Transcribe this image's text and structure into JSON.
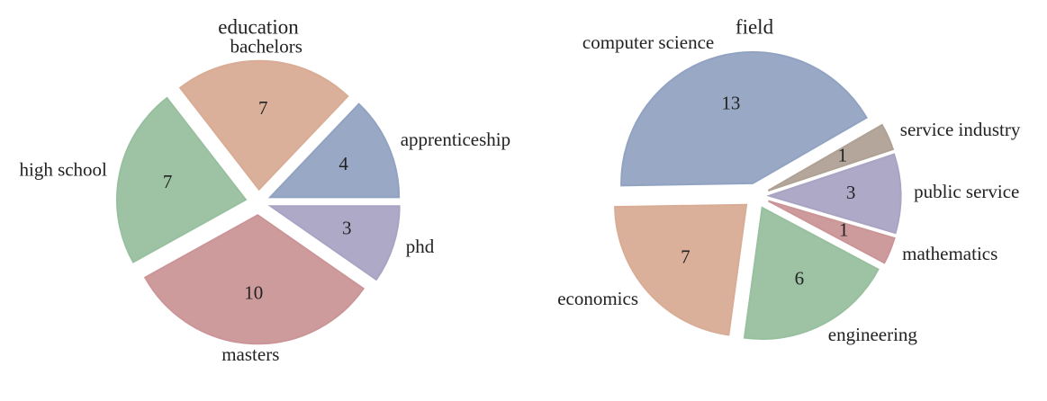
{
  "chart_data": [
    {
      "type": "pie",
      "title": "education",
      "categories": [
        "apprenticeship",
        "bachelors",
        "high school",
        "masters",
        "phd"
      ],
      "values": [
        4,
        7,
        7,
        10,
        3
      ],
      "colors": [
        "#a2b5d7",
        "#f0bfa6",
        "#a9d5b1",
        "#e1a6a9",
        "#bdb6da"
      ]
    },
    {
      "type": "pie",
      "title": "field",
      "categories": [
        "computer science",
        "economics",
        "engineering",
        "mathematics",
        "public service",
        "service industry"
      ],
      "values": [
        13,
        7,
        6,
        1,
        3,
        1
      ],
      "colors": [
        "#a2b5d7",
        "#f0bfa6",
        "#a9d5b1",
        "#e1a6a9",
        "#bdb6da",
        "#c4b3a6"
      ]
    }
  ]
}
